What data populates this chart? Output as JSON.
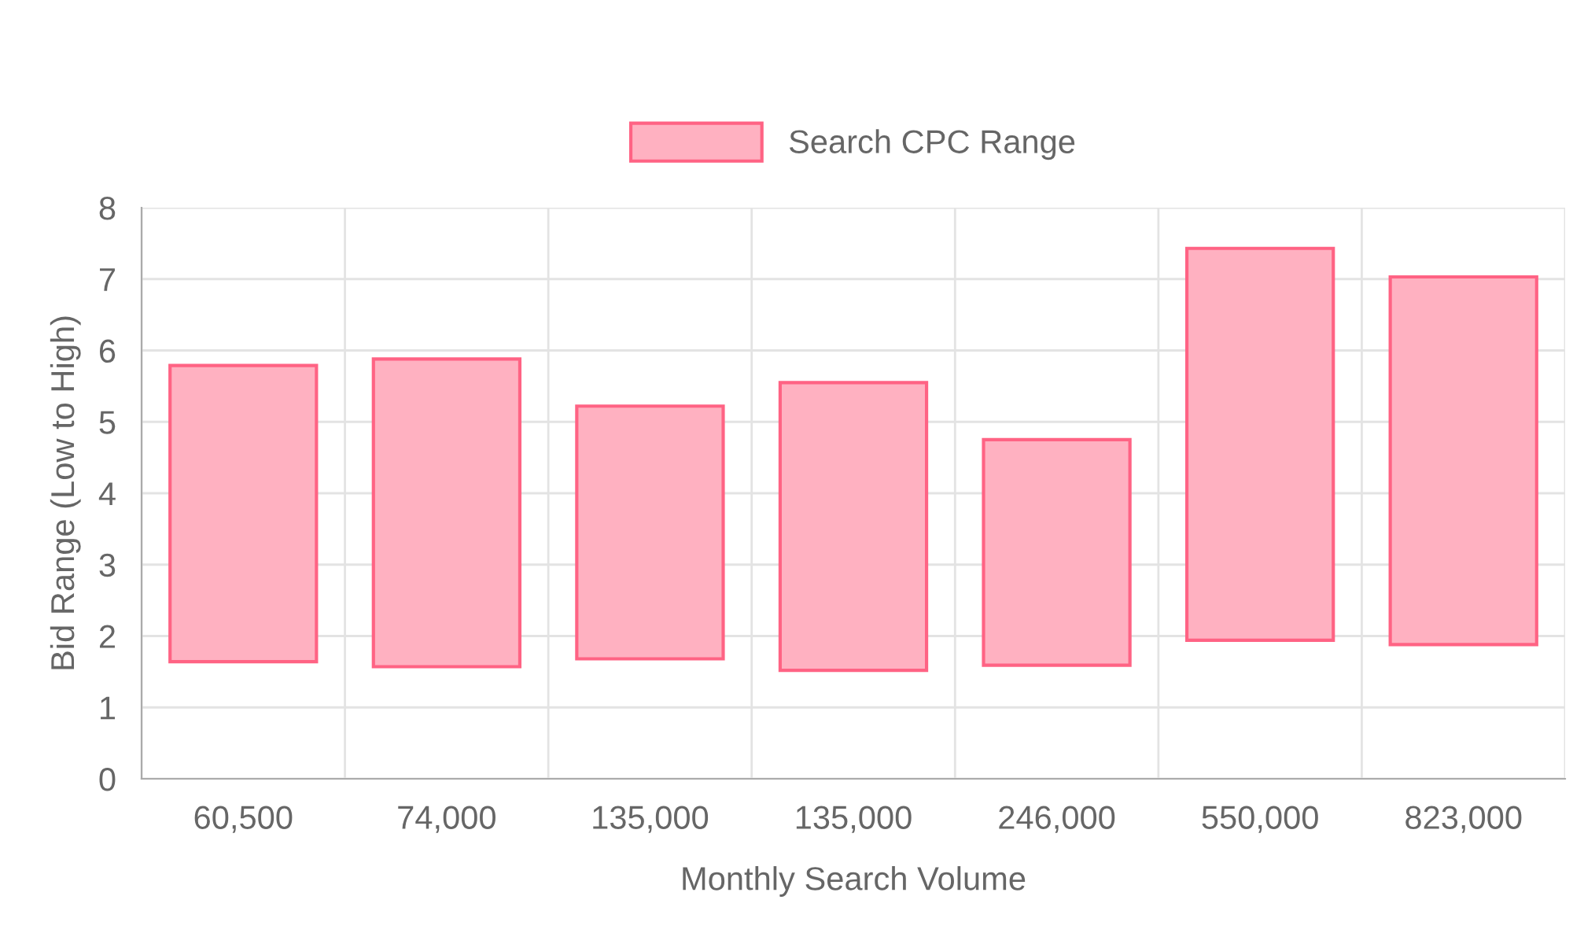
{
  "chart_data": {
    "type": "bar",
    "xlabel": "Monthly Search Volume",
    "ylabel": "Bid Range (Low to High)",
    "categories": [
      "60,500",
      "74,000",
      "135,000",
      "135,000",
      "246,000",
      "550,000",
      "823,000"
    ],
    "series": [
      {
        "name": "Search CPC Range",
        "color": "#ffb1c1",
        "values": [
          4.15,
          4.31,
          3.54,
          4.03,
          3.16,
          5.49,
          5.15
        ],
        "base": [
          1.64,
          1.57,
          1.68,
          1.52,
          1.59,
          1.94,
          1.88
        ]
      }
    ],
    "ylim": [
      0,
      8
    ],
    "yticks": [
      0,
      1,
      2,
      3,
      4,
      5,
      6,
      7,
      8
    ],
    "grid": true,
    "legend": "top"
  }
}
